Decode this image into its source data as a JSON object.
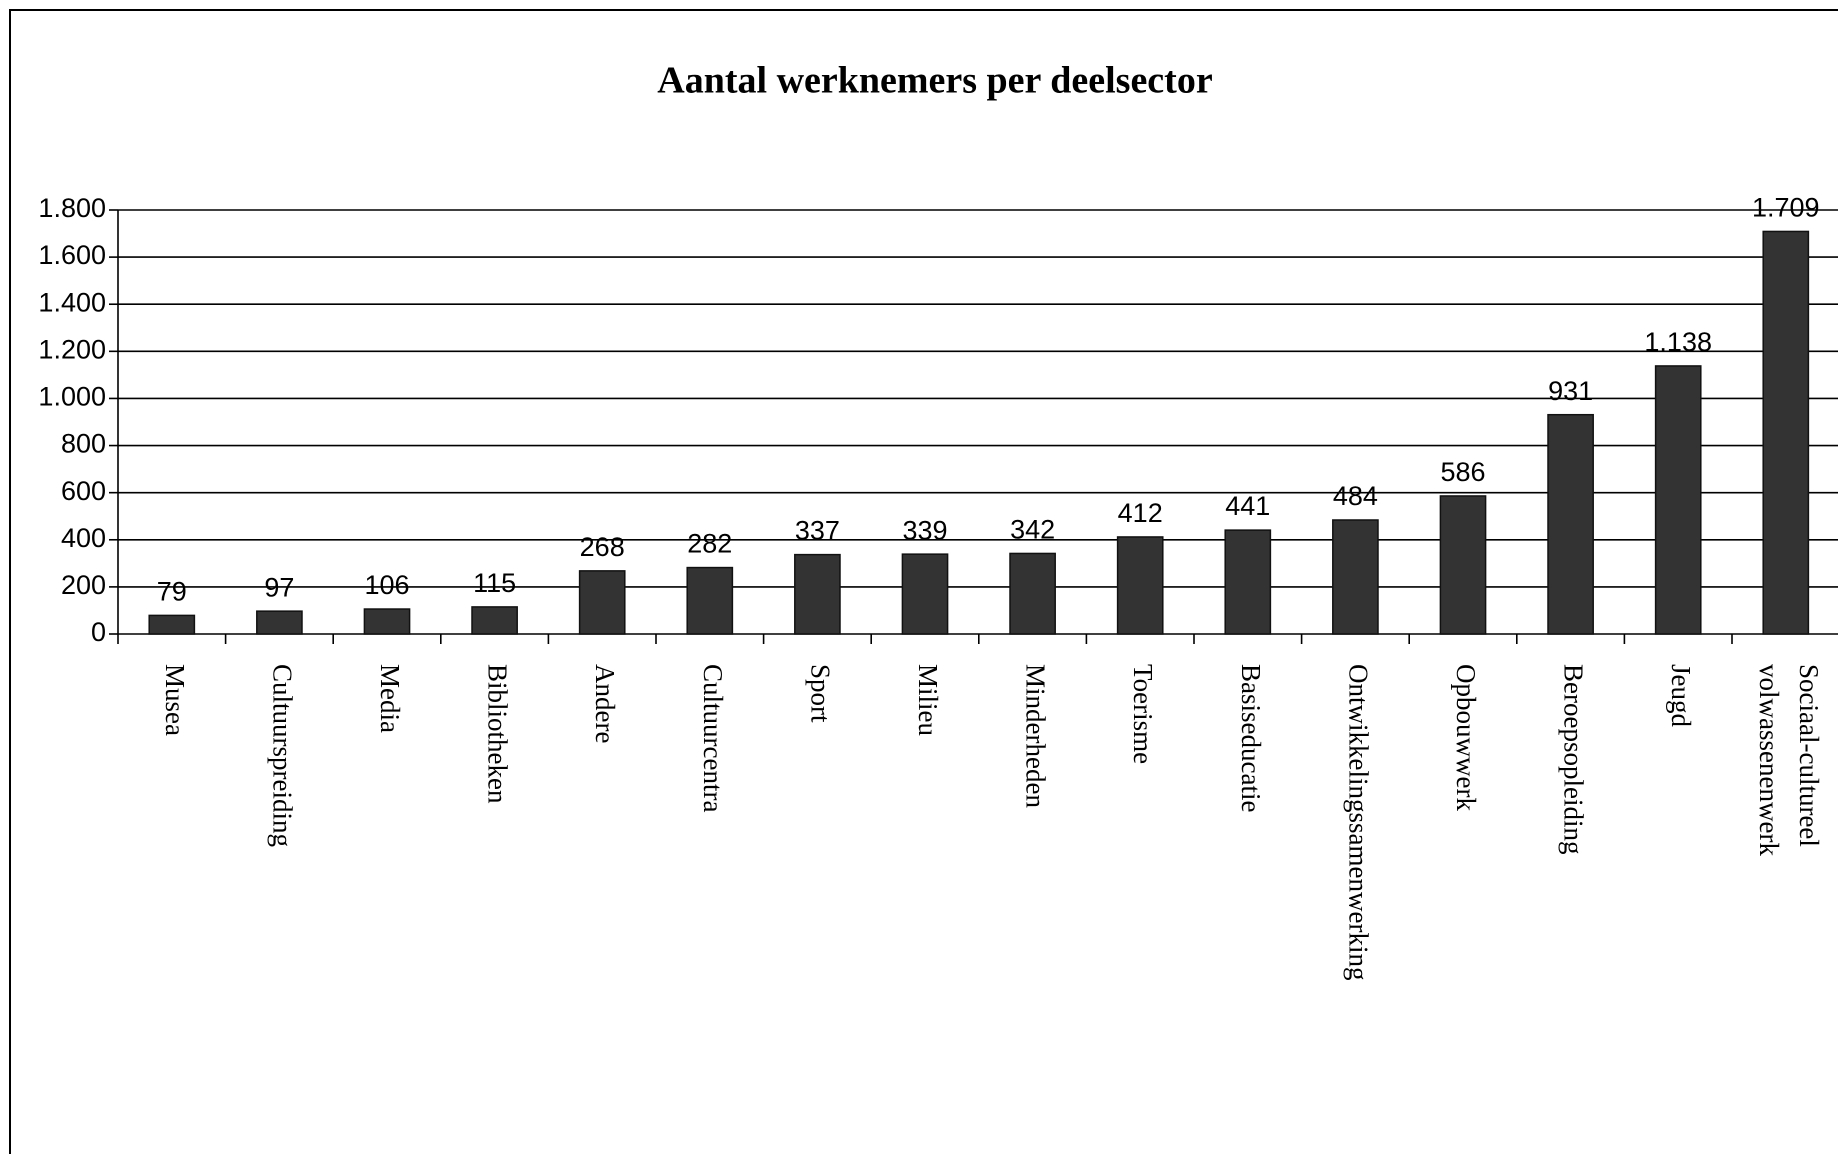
{
  "chart_data": {
    "type": "bar",
    "title": "Aantal werknemers per deelsector",
    "categories": [
      "Musea",
      "Cultuurspreiding",
      "Media",
      "Bibliotheken",
      "Andere",
      "Cultuurcentra",
      "Sport",
      "Milieu",
      "Minderheden",
      "Toerisme",
      "Basiseducatie",
      "Ontwikkelingssamenwerking",
      "Opbouwwerk",
      "Beroepsopleiding",
      "Jeugd",
      "Sociaal-cultureel volwassenenwerk"
    ],
    "values": [
      79,
      97,
      106,
      115,
      268,
      282,
      337,
      339,
      342,
      412,
      441,
      484,
      586,
      931,
      1138,
      1709
    ],
    "value_labels": [
      "79",
      "97",
      "106",
      "115",
      "268",
      "282",
      "337",
      "339",
      "342",
      "412",
      "441",
      "484",
      "586",
      "931",
      "1.138",
      "1.709"
    ],
    "color": "#333333",
    "ylim": [
      0,
      1800
    ],
    "yticks": [
      0,
      200,
      400,
      600,
      800,
      {
        "value": 1000,
        "label": "1.000"
      },
      {
        "value": 1200,
        "label": "1.200"
      },
      {
        "value": 1400,
        "label": "1.400"
      },
      {
        "value": 1600,
        "label": "1.600"
      },
      {
        "value": 1800,
        "label": "1.800"
      }
    ],
    "grid": true
  }
}
